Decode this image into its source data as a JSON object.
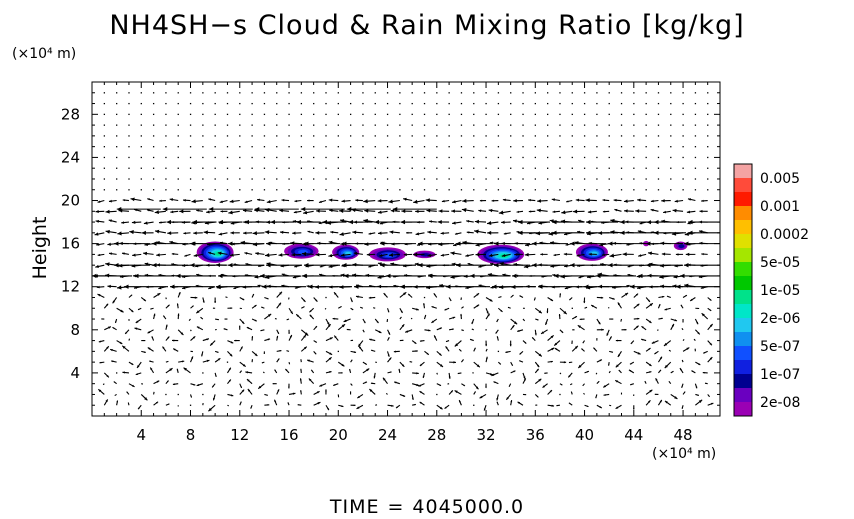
{
  "chart_data": {
    "type": "heatmap",
    "title": "NH4SH−s Cloud & Rain Mixing Ratio [kg/kg]",
    "xlabel": "",
    "ylabel": "Height",
    "x_unit": "(×10⁴ m)",
    "y_unit": "(×10⁴ m)",
    "xlim": [
      0,
      51
    ],
    "ylim": [
      0,
      31
    ],
    "x_ticks": [
      "4",
      "8",
      "12",
      "16",
      "20",
      "24",
      "28",
      "32",
      "36",
      "40",
      "44",
      "48"
    ],
    "y_ticks": [
      "4",
      "8",
      "12",
      "16",
      "20",
      "24",
      "28"
    ],
    "colorbar": {
      "labels": [
        "0.005",
        "0.001",
        "0.0002",
        "5e-05",
        "1e-05",
        "2e-06",
        "5e-07",
        "1e-07",
        "2e-08"
      ],
      "colors": [
        "#f4a3a3",
        "#ff4b3a",
        "#ff1a00",
        "#ff8c00",
        "#ffbf00",
        "#e0e000",
        "#a5e600",
        "#33dd00",
        "#00c800",
        "#00e28a",
        "#00e6c8",
        "#20c8f0",
        "#1090f0",
        "#1050ff",
        "#1020e0",
        "#000090",
        "#6a00c0",
        "#9a00b4"
      ]
    },
    "cloud_cells": [
      {
        "x": 10.0,
        "y": 15.2,
        "width": 3.0,
        "height": 2.0,
        "level": "1e-05"
      },
      {
        "x": 17.0,
        "y": 15.3,
        "width": 2.8,
        "height": 1.4,
        "level": "5e-07"
      },
      {
        "x": 20.6,
        "y": 15.2,
        "width": 2.2,
        "height": 1.4,
        "level": "2e-06"
      },
      {
        "x": 24.0,
        "y": 15.0,
        "width": 3.0,
        "height": 1.3,
        "level": "5e-07"
      },
      {
        "x": 27.0,
        "y": 15.0,
        "width": 1.8,
        "height": 0.7,
        "level": "1e-07"
      },
      {
        "x": 33.2,
        "y": 15.0,
        "width": 3.8,
        "height": 1.8,
        "level": "1e-05"
      },
      {
        "x": 40.6,
        "y": 15.2,
        "width": 2.6,
        "height": 1.6,
        "level": "2e-06"
      },
      {
        "x": 45.0,
        "y": 16.0,
        "width": 0.5,
        "height": 0.5,
        "level": "2e-08"
      },
      {
        "x": 47.8,
        "y": 15.8,
        "width": 1.1,
        "height": 0.8,
        "level": "1e-07"
      }
    ],
    "wind_field": {
      "bands": [
        {
          "y": 19.2,
          "u": -5.5,
          "from_x": 0,
          "to_x": 28
        },
        {
          "y": 18.0,
          "u": -3.0,
          "from_x": 6,
          "to_x": 27
        },
        {
          "y": 18.0,
          "u": -4.0,
          "from_x": 33,
          "to_x": 51
        },
        {
          "y": 17.0,
          "u": -4.0,
          "from_x": 33,
          "to_x": 51
        },
        {
          "y": 16.0,
          "u": -4.5,
          "from_x": 0,
          "to_x": 51
        },
        {
          "y": 14.0,
          "u": -4.5,
          "from_x": 0,
          "to_x": 51
        },
        {
          "y": 13.0,
          "u": -5.0,
          "from_x": 0,
          "to_x": 51
        },
        {
          "y": 12.0,
          "u": -5.5,
          "from_x": 0,
          "to_x": 51
        }
      ],
      "surface_layer": "weak variable flow below 11",
      "upper_layer": "near calm above 21"
    },
    "grid": false,
    "legend": "right"
  },
  "footer": {
    "time_label": "TIME",
    "time_sep": "=",
    "time_value": "4045000.0"
  }
}
